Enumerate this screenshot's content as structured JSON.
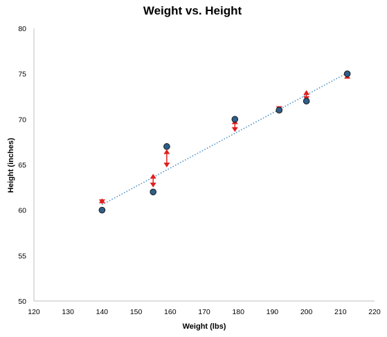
{
  "chart_data": {
    "type": "scatter",
    "title": "Weight vs. Height",
    "xlabel": "Weight (lbs)",
    "ylabel": "Height (inches)",
    "xlim": [
      120,
      220
    ],
    "ylim": [
      50,
      80
    ],
    "xticks": [
      120,
      130,
      140,
      150,
      160,
      170,
      180,
      190,
      200,
      210,
      220
    ],
    "yticks": [
      50,
      55,
      60,
      65,
      70,
      75,
      80
    ],
    "grid": false,
    "legend": "none",
    "points": [
      {
        "x": 140,
        "y": 60
      },
      {
        "x": 155,
        "y": 62
      },
      {
        "x": 159,
        "y": 67
      },
      {
        "x": 179,
        "y": 70
      },
      {
        "x": 192,
        "y": 71
      },
      {
        "x": 200,
        "y": 72
      },
      {
        "x": 212,
        "y": 75
      }
    ],
    "trendline": {
      "style": "dotted",
      "x": [
        140,
        212
      ],
      "y": [
        60.6,
        75.1
      ]
    },
    "residual_arrows": [
      {
        "x": 140,
        "from": 60.65,
        "to": 61.3
      },
      {
        "x": 155,
        "from": 62.5,
        "to": 64
      },
      {
        "x": 159,
        "from": 64.7,
        "to": 66.7
      },
      {
        "x": 179,
        "from": 68.6,
        "to": 70
      },
      {
        "x": 192,
        "from": 70.9,
        "to": 71.3
      },
      {
        "x": 200,
        "from": 72,
        "to": 73.2
      },
      {
        "x": 212,
        "from": 74.5,
        "to": 75
      }
    ],
    "colors": {
      "point_fill": "#2e5f8a",
      "point_stroke": "#1a1a1a",
      "trendline": "#4a90c8",
      "arrow": "#e02020",
      "axis": "#bfbfbf"
    }
  }
}
